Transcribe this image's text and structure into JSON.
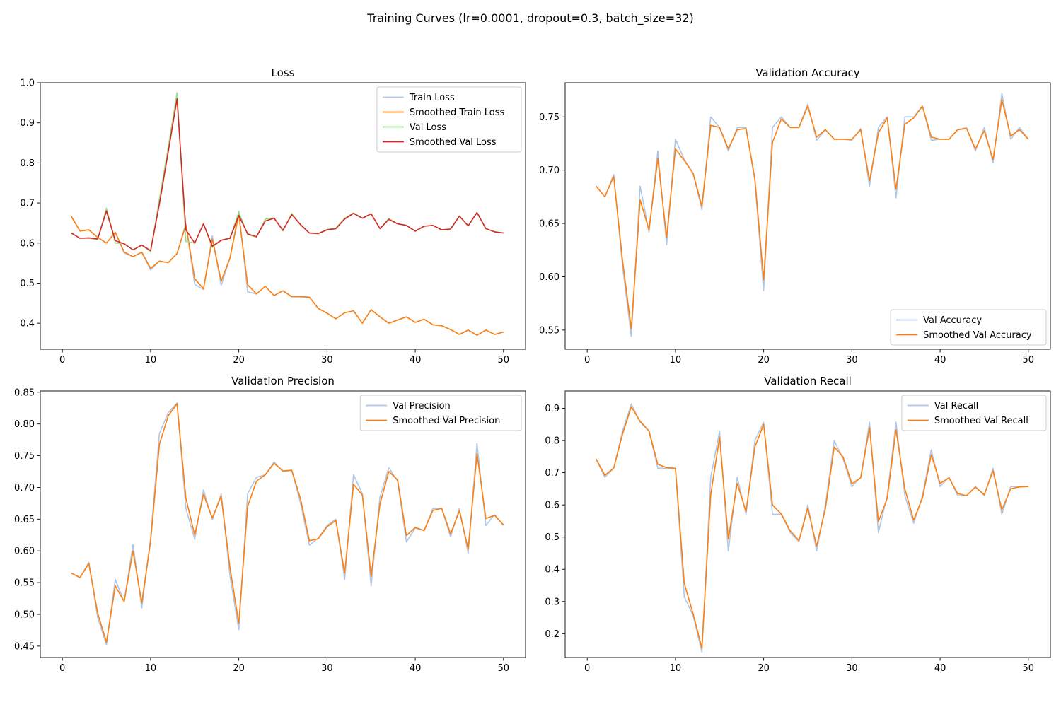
{
  "suptitle": "Training Curves (lr=0.0001, dropout=0.3, batch_size=32)",
  "colors": {
    "light_blue": "#aec7e8",
    "orange": "#ff7f0e",
    "light_green": "#98df8a",
    "red": "#d62728"
  },
  "chart_data": [
    {
      "type": "line",
      "title": "Loss",
      "xlabel": "",
      "ylabel": "",
      "xlim": [
        -2.5,
        52.5
      ],
      "ylim": [
        0.335,
        1.0
      ],
      "xticks": [
        0,
        10,
        20,
        30,
        40,
        50
      ],
      "yticks": [
        0.4,
        0.5,
        0.6,
        0.7,
        0.8,
        0.9,
        1.0
      ],
      "ytick_labels": [
        "0.4",
        "0.5",
        "0.6",
        "0.7",
        "0.8",
        "0.9",
        "1.0"
      ],
      "legend": "top-right",
      "grid": false,
      "x": [
        1,
        2,
        3,
        4,
        5,
        6,
        7,
        8,
        9,
        10,
        11,
        12,
        13,
        14,
        15,
        16,
        17,
        18,
        19,
        20,
        21,
        22,
        23,
        24,
        25,
        26,
        27,
        28,
        29,
        30,
        31,
        32,
        33,
        34,
        35,
        36,
        37,
        38,
        39,
        40,
        41,
        42,
        43,
        44,
        45,
        46,
        47,
        48,
        49,
        50
      ],
      "series": [
        {
          "name": "Train Loss",
          "color": "#aec7e8",
          "values": [
            0.667,
            0.63,
            0.633,
            0.614,
            0.6,
            0.627,
            0.575,
            0.566,
            0.577,
            0.533,
            0.555,
            0.551,
            0.574,
            0.648,
            0.497,
            0.484,
            0.618,
            0.494,
            0.563,
            0.68,
            0.478,
            0.473,
            0.492,
            0.469,
            0.481,
            0.466,
            0.466,
            0.465,
            0.437,
            0.425,
            0.411,
            0.426,
            0.431,
            0.4,
            0.434,
            0.416,
            0.4,
            0.408,
            0.416,
            0.402,
            0.41,
            0.396,
            0.394,
            0.384,
            0.372,
            0.383,
            0.37,
            0.383,
            0.372,
            0.378
          ]
        },
        {
          "name": "Smoothed Train Loss",
          "color": "#ff7f0e",
          "values": [
            0.667,
            0.63,
            0.633,
            0.614,
            0.6,
            0.627,
            0.578,
            0.566,
            0.577,
            0.537,
            0.555,
            0.551,
            0.574,
            0.645,
            0.511,
            0.486,
            0.61,
            0.505,
            0.563,
            0.671,
            0.496,
            0.473,
            0.492,
            0.469,
            0.481,
            0.466,
            0.466,
            0.465,
            0.437,
            0.425,
            0.411,
            0.426,
            0.431,
            0.4,
            0.434,
            0.416,
            0.4,
            0.408,
            0.416,
            0.402,
            0.41,
            0.396,
            0.394,
            0.384,
            0.372,
            0.383,
            0.37,
            0.383,
            0.372,
            0.378
          ]
        },
        {
          "name": "Val Loss",
          "color": "#98df8a",
          "values": [
            0.625,
            0.612,
            0.612,
            0.609,
            0.687,
            0.6,
            0.599,
            0.583,
            0.594,
            0.579,
            0.71,
            0.84,
            0.975,
            0.604,
            0.6,
            0.648,
            0.589,
            0.607,
            0.613,
            0.677,
            0.621,
            0.615,
            0.66,
            0.663,
            0.63,
            0.674,
            0.645,
            0.625,
            0.623,
            0.634,
            0.637,
            0.662,
            0.675,
            0.662,
            0.673,
            0.636,
            0.661,
            0.648,
            0.644,
            0.629,
            0.642,
            0.644,
            0.633,
            0.635,
            0.668,
            0.643,
            0.677,
            0.636,
            0.628,
            0.625
          ]
        },
        {
          "name": "Smoothed Val Loss",
          "color": "#d62728",
          "values": [
            0.625,
            0.612,
            0.613,
            0.61,
            0.68,
            0.606,
            0.598,
            0.583,
            0.595,
            0.581,
            0.698,
            0.828,
            0.96,
            0.633,
            0.6,
            0.648,
            0.592,
            0.607,
            0.612,
            0.669,
            0.623,
            0.616,
            0.655,
            0.662,
            0.632,
            0.671,
            0.646,
            0.625,
            0.624,
            0.633,
            0.636,
            0.66,
            0.674,
            0.662,
            0.673,
            0.636,
            0.659,
            0.648,
            0.644,
            0.63,
            0.642,
            0.644,
            0.633,
            0.635,
            0.667,
            0.643,
            0.676,
            0.636,
            0.628,
            0.625
          ]
        }
      ]
    },
    {
      "type": "line",
      "title": "Validation Accuracy",
      "xlabel": "",
      "ylabel": "",
      "xlim": [
        -2.5,
        52.5
      ],
      "ylim": [
        0.532,
        0.782
      ],
      "xticks": [
        0,
        10,
        20,
        30,
        40,
        50
      ],
      "yticks": [
        0.55,
        0.6,
        0.65,
        0.7,
        0.75
      ],
      "ytick_labels": [
        "0.55",
        "0.60",
        "0.65",
        "0.70",
        "0.75"
      ],
      "legend": "bottom-right",
      "grid": false,
      "x": [
        1,
        2,
        3,
        4,
        5,
        6,
        7,
        8,
        9,
        10,
        11,
        12,
        13,
        14,
        15,
        16,
        17,
        18,
        19,
        20,
        21,
        22,
        23,
        24,
        25,
        26,
        27,
        28,
        29,
        30,
        31,
        32,
        33,
        34,
        35,
        36,
        37,
        38,
        39,
        40,
        41,
        42,
        43,
        44,
        45,
        46,
        47,
        48,
        49,
        50
      ],
      "series": [
        {
          "name": "Val Accuracy",
          "color": "#aec7e8",
          "values": [
            0.685,
            0.675,
            0.696,
            0.61,
            0.544,
            0.685,
            0.642,
            0.718,
            0.63,
            0.729,
            0.71,
            0.697,
            0.663,
            0.75,
            0.74,
            0.718,
            0.74,
            0.74,
            0.69,
            0.587,
            0.74,
            0.75,
            0.74,
            0.74,
            0.762,
            0.728,
            0.738,
            0.729,
            0.729,
            0.728,
            0.739,
            0.685,
            0.74,
            0.75,
            0.674,
            0.75,
            0.75,
            0.76,
            0.728,
            0.729,
            0.729,
            0.738,
            0.74,
            0.718,
            0.74,
            0.707,
            0.772,
            0.729,
            0.74,
            0.729
          ]
        },
        {
          "name": "Smoothed Val Accuracy",
          "color": "#ff7f0e",
          "values": [
            0.685,
            0.675,
            0.694,
            0.615,
            0.551,
            0.672,
            0.644,
            0.711,
            0.637,
            0.72,
            0.709,
            0.697,
            0.666,
            0.742,
            0.74,
            0.72,
            0.738,
            0.739,
            0.692,
            0.597,
            0.726,
            0.748,
            0.74,
            0.74,
            0.76,
            0.731,
            0.738,
            0.729,
            0.729,
            0.729,
            0.738,
            0.69,
            0.735,
            0.749,
            0.682,
            0.743,
            0.749,
            0.76,
            0.731,
            0.729,
            0.729,
            0.738,
            0.739,
            0.72,
            0.737,
            0.71,
            0.766,
            0.732,
            0.738,
            0.729
          ]
        }
      ]
    },
    {
      "type": "line",
      "title": "Validation Precision",
      "xlabel": "",
      "ylabel": "",
      "xlim": [
        -2.5,
        52.5
      ],
      "ylim": [
        0.432,
        0.852
      ],
      "xticks": [
        0,
        10,
        20,
        30,
        40,
        50
      ],
      "yticks": [
        0.45,
        0.5,
        0.55,
        0.6,
        0.65,
        0.7,
        0.75,
        0.8,
        0.85
      ],
      "ytick_labels": [
        "0.45",
        "0.50",
        "0.55",
        "0.60",
        "0.65",
        "0.70",
        "0.75",
        "0.80",
        "0.85"
      ],
      "legend": "top-right",
      "grid": false,
      "x": [
        1,
        2,
        3,
        4,
        5,
        6,
        7,
        8,
        9,
        10,
        11,
        12,
        13,
        14,
        15,
        16,
        17,
        18,
        19,
        20,
        21,
        22,
        23,
        24,
        25,
        26,
        27,
        28,
        29,
        30,
        31,
        32,
        33,
        34,
        35,
        36,
        37,
        38,
        39,
        40,
        41,
        42,
        43,
        44,
        45,
        46,
        47,
        48,
        49,
        50
      ],
      "series": [
        {
          "name": "Val Precision",
          "color": "#aec7e8",
          "values": [
            0.565,
            0.558,
            0.582,
            0.495,
            0.452,
            0.555,
            0.52,
            0.61,
            0.51,
            0.62,
            0.785,
            0.818,
            0.833,
            0.667,
            0.618,
            0.696,
            0.649,
            0.69,
            0.56,
            0.476,
            0.69,
            0.716,
            0.72,
            0.74,
            0.725,
            0.727,
            0.675,
            0.609,
            0.62,
            0.64,
            0.65,
            0.555,
            0.72,
            0.69,
            0.545,
            0.685,
            0.731,
            0.71,
            0.614,
            0.636,
            0.632,
            0.667,
            0.667,
            0.622,
            0.667,
            0.596,
            0.769,
            0.64,
            0.657,
            0.64
          ]
        },
        {
          "name": "Smoothed Val Precision",
          "color": "#ff7f0e",
          "values": [
            0.565,
            0.558,
            0.58,
            0.502,
            0.456,
            0.545,
            0.52,
            0.6,
            0.518,
            0.615,
            0.768,
            0.813,
            0.832,
            0.683,
            0.625,
            0.689,
            0.652,
            0.686,
            0.573,
            0.486,
            0.67,
            0.71,
            0.72,
            0.738,
            0.726,
            0.727,
            0.682,
            0.616,
            0.619,
            0.638,
            0.648,
            0.565,
            0.705,
            0.688,
            0.56,
            0.674,
            0.725,
            0.712,
            0.624,
            0.637,
            0.632,
            0.664,
            0.667,
            0.627,
            0.663,
            0.603,
            0.753,
            0.651,
            0.656,
            0.641
          ]
        }
      ]
    },
    {
      "type": "line",
      "title": "Validation Recall",
      "xlabel": "",
      "ylabel": "",
      "xlim": [
        -2.5,
        52.5
      ],
      "ylim": [
        0.126,
        0.954
      ],
      "xticks": [
        0,
        10,
        20,
        30,
        40,
        50
      ],
      "yticks": [
        0.2,
        0.3,
        0.4,
        0.5,
        0.6,
        0.7,
        0.8,
        0.9
      ],
      "ytick_labels": [
        "0.2",
        "0.3",
        "0.4",
        "0.5",
        "0.6",
        "0.7",
        "0.8",
        "0.9"
      ],
      "legend": "top-right",
      "grid": false,
      "x": [
        1,
        2,
        3,
        4,
        5,
        6,
        7,
        8,
        9,
        10,
        11,
        12,
        13,
        14,
        15,
        16,
        17,
        18,
        19,
        20,
        21,
        22,
        23,
        24,
        25,
        26,
        27,
        28,
        29,
        30,
        31,
        32,
        33,
        34,
        35,
        36,
        37,
        38,
        39,
        40,
        41,
        42,
        43,
        44,
        45,
        46,
        47,
        48,
        49,
        50
      ],
      "series": [
        {
          "name": "Val Recall",
          "color": "#aec7e8",
          "values": [
            0.743,
            0.686,
            0.714,
            0.829,
            0.914,
            0.857,
            0.829,
            0.714,
            0.714,
            0.714,
            0.314,
            0.257,
            0.143,
            0.686,
            0.829,
            0.457,
            0.686,
            0.571,
            0.8,
            0.857,
            0.571,
            0.571,
            0.514,
            0.486,
            0.6,
            0.457,
            0.6,
            0.8,
            0.743,
            0.657,
            0.686,
            0.857,
            0.514,
            0.629,
            0.857,
            0.629,
            0.543,
            0.629,
            0.771,
            0.657,
            0.686,
            0.629,
            0.629,
            0.657,
            0.629,
            0.714,
            0.571,
            0.657,
            0.657,
            0.657
          ]
        },
        {
          "name": "Smoothed Val Recall",
          "color": "#ff7f0e",
          "values": [
            0.743,
            0.692,
            0.714,
            0.82,
            0.905,
            0.86,
            0.83,
            0.726,
            0.716,
            0.714,
            0.356,
            0.262,
            0.155,
            0.632,
            0.81,
            0.494,
            0.667,
            0.58,
            0.78,
            0.85,
            0.6,
            0.572,
            0.52,
            0.489,
            0.59,
            0.472,
            0.588,
            0.78,
            0.749,
            0.666,
            0.684,
            0.84,
            0.548,
            0.62,
            0.834,
            0.65,
            0.553,
            0.621,
            0.756,
            0.667,
            0.684,
            0.635,
            0.629,
            0.655,
            0.632,
            0.706,
            0.585,
            0.65,
            0.656,
            0.657
          ]
        }
      ]
    }
  ]
}
